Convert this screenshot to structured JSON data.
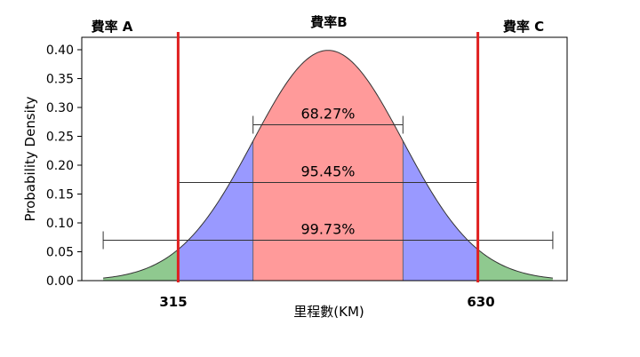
{
  "chart_data": {
    "type": "area",
    "distribution": "normal",
    "x_range_sigma": [
      -3,
      3
    ],
    "ylabel": "Probability Density",
    "xlabel": "里程數(KM)",
    "ylim": [
      0,
      0.42
    ],
    "yticks": [
      "0.00",
      "0.05",
      "0.10",
      "0.15",
      "0.20",
      "0.25",
      "0.30",
      "0.35",
      "0.40"
    ],
    "grid": false,
    "bands": [
      {
        "name": "±1σ",
        "sigma_range": [
          -1,
          1
        ],
        "color": "#ff9a9a"
      },
      {
        "name": "±2σ",
        "sigma_range": [
          -2,
          2
        ],
        "color": "#9999ff"
      },
      {
        "name": "±3σ",
        "sigma_range": [
          -3,
          3
        ],
        "color": "#8fc98f"
      }
    ],
    "intervals": [
      {
        "label": "68.27%",
        "sigma_from": -1,
        "sigma_to": 1,
        "y": 0.27
      },
      {
        "label": "95.45%",
        "sigma_from": -2,
        "sigma_to": 2,
        "y": 0.17
      },
      {
        "label": "99.73%",
        "sigma_from": -3,
        "sigma_to": 3,
        "y": 0.07
      }
    ],
    "vlines": [
      {
        "label": "315",
        "sigma": -2.0
      },
      {
        "label": "630",
        "sigma": 2.0
      }
    ],
    "vline_color": "#e02020",
    "zones": [
      "費率 A",
      "費率B",
      "費率 C"
    ]
  }
}
